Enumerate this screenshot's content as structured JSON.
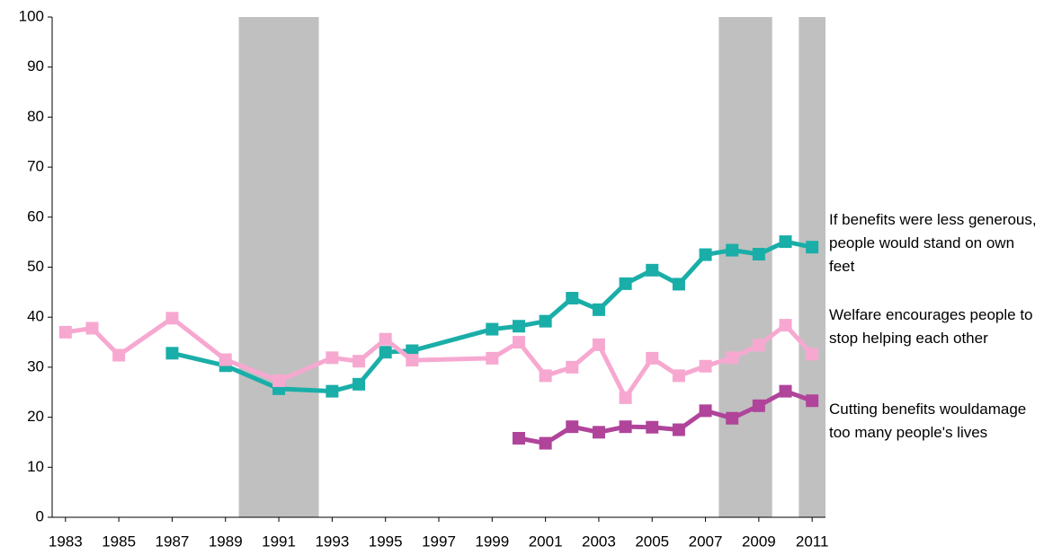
{
  "chart_data": {
    "type": "line",
    "xlim": [
      1982.5,
      2011.5
    ],
    "xticks": [
      1983,
      1985,
      1987,
      1989,
      1991,
      1993,
      1995,
      1997,
      1999,
      2001,
      2003,
      2005,
      2007,
      2009,
      2011
    ],
    "ylim": [
      0,
      100
    ],
    "yticks": [
      0,
      10,
      20,
      30,
      40,
      50,
      60,
      70,
      80,
      90,
      100
    ],
    "grid": false,
    "shaded_ranges": [
      [
        1989.5,
        1992.5
      ],
      [
        2007.5,
        2009.5
      ],
      [
        2010.5,
        2011.5
      ]
    ],
    "shade_color": "#c0c0c0",
    "series": [
      {
        "name": "If benefits were less generous, people would stand on own feet",
        "color": "#1aaea8",
        "x": [
          1987,
          1989,
          1991,
          1993,
          1994,
          1995,
          1996,
          1999,
          2000,
          2001,
          2002,
          2003,
          2004,
          2005,
          2006,
          2007,
          2008,
          2009,
          2010,
          2011
        ],
        "values": [
          32.8,
          30.3,
          25.7,
          25.2,
          26.6,
          33,
          33.3,
          37.6,
          38.2,
          39.2,
          43.8,
          41.5,
          46.7,
          49.4,
          46.6,
          52.5,
          53.4,
          52.6,
          55.1,
          54
        ]
      },
      {
        "name": "Welfare encourages people to stop helping each other",
        "color": "#f7a8d0",
        "x": [
          1983,
          1984,
          1985,
          1987,
          1989,
          1991,
          1993,
          1994,
          1995,
          1996,
          1999,
          2000,
          2001,
          2002,
          2003,
          2004,
          2005,
          2006,
          2007,
          2008,
          2009,
          2010,
          2011
        ],
        "values": [
          37,
          37.8,
          32.4,
          39.8,
          31.5,
          27.3,
          31.9,
          31.2,
          35.6,
          31.4,
          31.8,
          35,
          28.3,
          30,
          34.5,
          23.9,
          31.8,
          28.3,
          30.2,
          31.9,
          34.4,
          38.4,
          32.6
        ]
      },
      {
        "name": "Cutting benefits wouldamage too many people's lives",
        "color": "#b0449a",
        "x": [
          2000,
          2001,
          2002,
          2003,
          2004,
          2005,
          2006,
          2007,
          2008,
          2009,
          2010,
          2011
        ],
        "values": [
          15.8,
          14.8,
          18.1,
          17,
          18.1,
          18,
          17.5,
          21.3,
          19.8,
          22.3,
          25.2,
          23.3
        ]
      }
    ]
  }
}
